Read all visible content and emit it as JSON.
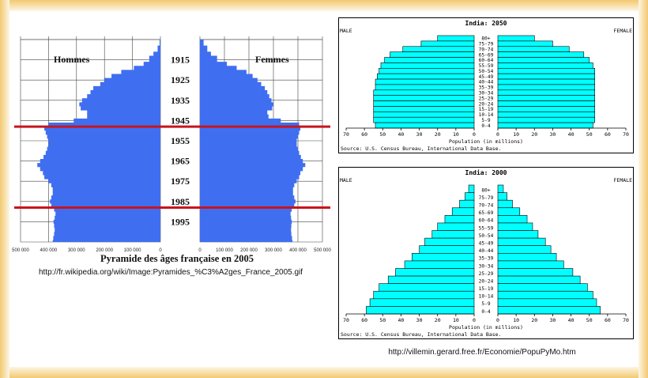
{
  "theme": {
    "bar_blue": "#3f6ff0",
    "bar_cyan": "#00ffff",
    "red_line": "#c8141e",
    "frame": "#f6d690"
  },
  "france": {
    "left_label": "Hommes",
    "right_label": "Femmes",
    "year_labels": [
      "1915",
      "1925",
      "1935",
      "1945",
      "1955",
      "1965",
      "1975",
      "1985",
      "1995"
    ],
    "x_tick_labels_left": [
      "500 000",
      "400 000",
      "300 000",
      "200 000",
      "100 000",
      "0"
    ],
    "x_tick_labels_right": [
      "0",
      "100 000",
      "200 000",
      "300 000",
      "400 000",
      "500 000"
    ],
    "caption": "Pyramide des âges française en 2005",
    "source_url": "http://fr.wikipedia.org/wiki/Image:Pyramides_%C3%A2ges_France_2005.gif"
  },
  "india_right_url": "http://villemin.gerard.free.fr/Economie/PopuPyMo.htm",
  "chart_data": [
    {
      "type": "bar",
      "orientation": "horizontal-pyramid",
      "series": [
        {
          "name": "Hommes"
        },
        {
          "name": "Femmes"
        }
      ],
      "unit": "persons",
      "x_range": [
        0,
        500000
      ],
      "y_label_years": [
        "1915",
        "1925",
        "1935",
        "1945",
        "1955",
        "1965",
        "1975",
        "1985",
        "1995"
      ],
      "year_range": [
        1905,
        2005
      ],
      "hommes": [
        [
          1905,
          3000
        ],
        [
          1908,
          10000
        ],
        [
          1911,
          25000
        ],
        [
          1913,
          40000
        ],
        [
          1916,
          60000
        ],
        [
          1918,
          95000
        ],
        [
          1920,
          140000
        ],
        [
          1922,
          175000
        ],
        [
          1924,
          200000
        ],
        [
          1926,
          215000
        ],
        [
          1928,
          240000
        ],
        [
          1930,
          250000
        ],
        [
          1932,
          262000
        ],
        [
          1934,
          280000
        ],
        [
          1936,
          290000
        ],
        [
          1938,
          285000
        ],
        [
          1940,
          262000
        ],
        [
          1942,
          262000
        ],
        [
          1944,
          310000
        ],
        [
          1946,
          400000
        ],
        [
          1948,
          415000
        ],
        [
          1950,
          410000
        ],
        [
          1952,
          405000
        ],
        [
          1954,
          400000
        ],
        [
          1956,
          400000
        ],
        [
          1958,
          405000
        ],
        [
          1960,
          410000
        ],
        [
          1962,
          418000
        ],
        [
          1964,
          430000
        ],
        [
          1966,
          440000
        ],
        [
          1968,
          430000
        ],
        [
          1970,
          420000
        ],
        [
          1972,
          415000
        ],
        [
          1974,
          400000
        ],
        [
          1976,
          390000
        ],
        [
          1978,
          385000
        ],
        [
          1980,
          385000
        ],
        [
          1982,
          390000
        ],
        [
          1984,
          395000
        ],
        [
          1986,
          390000
        ],
        [
          1988,
          380000
        ],
        [
          1990,
          375000
        ],
        [
          1992,
          378000
        ],
        [
          1994,
          382000
        ],
        [
          1996,
          380000
        ],
        [
          1998,
          378000
        ],
        [
          2000,
          380000
        ],
        [
          2002,
          383000
        ],
        [
          2004,
          385000
        ]
      ],
      "femmes": [
        [
          1905,
          15000
        ],
        [
          1908,
          30000
        ],
        [
          1911,
          45000
        ],
        [
          1913,
          70000
        ],
        [
          1916,
          110000
        ],
        [
          1918,
          150000
        ],
        [
          1920,
          190000
        ],
        [
          1922,
          215000
        ],
        [
          1924,
          235000
        ],
        [
          1926,
          250000
        ],
        [
          1928,
          265000
        ],
        [
          1930,
          275000
        ],
        [
          1932,
          283000
        ],
        [
          1934,
          292000
        ],
        [
          1936,
          300000
        ],
        [
          1938,
          295000
        ],
        [
          1940,
          275000
        ],
        [
          1942,
          280000
        ],
        [
          1944,
          330000
        ],
        [
          1946,
          405000
        ],
        [
          1948,
          410000
        ],
        [
          1950,
          405000
        ],
        [
          1952,
          400000
        ],
        [
          1954,
          395000
        ],
        [
          1956,
          395000
        ],
        [
          1958,
          400000
        ],
        [
          1960,
          405000
        ],
        [
          1962,
          412000
        ],
        [
          1964,
          420000
        ],
        [
          1966,
          430000
        ],
        [
          1968,
          420000
        ],
        [
          1970,
          410000
        ],
        [
          1972,
          405000
        ],
        [
          1974,
          395000
        ],
        [
          1976,
          385000
        ],
        [
          1978,
          380000
        ],
        [
          1980,
          380000
        ],
        [
          1982,
          385000
        ],
        [
          1984,
          390000
        ],
        [
          1986,
          385000
        ],
        [
          1988,
          375000
        ],
        [
          1990,
          370000
        ],
        [
          1992,
          372000
        ],
        [
          1994,
          375000
        ],
        [
          1996,
          373000
        ],
        [
          1998,
          372000
        ],
        [
          2000,
          373000
        ],
        [
          2002,
          376000
        ],
        [
          2004,
          378000
        ]
      ],
      "highlight_years": [
        1948,
        1988
      ],
      "title": "Pyramide des âges française en 2005"
    },
    {
      "type": "bar",
      "orientation": "horizontal-pyramid",
      "title": "India: 2050",
      "left_label": "MALE",
      "right_label": "FEMALE",
      "categories": [
        "80+",
        "75-79",
        "70-74",
        "65-69",
        "60-64",
        "55-59",
        "50-54",
        "45-49",
        "40-44",
        "35-39",
        "30-34",
        "25-29",
        "20-24",
        "15-19",
        "10-14",
        "5-9",
        "0-4"
      ],
      "series": [
        {
          "name": "MALE",
          "values": [
            20,
            29,
            39,
            46,
            49,
            51,
            52,
            53,
            54,
            54,
            55,
            55,
            55,
            55,
            55,
            55,
            54
          ]
        },
        {
          "name": "FEMALE",
          "values": [
            20,
            30,
            39,
            47,
            50,
            52,
            53,
            53,
            53,
            53,
            53,
            53,
            53,
            53,
            53,
            53,
            52
          ]
        }
      ],
      "xlim": [
        0,
        70
      ],
      "x_ticks": [
        "70",
        "60",
        "50",
        "40",
        "30",
        "20",
        "10",
        "0",
        "0",
        "10",
        "20",
        "30",
        "40",
        "50",
        "60",
        "70"
      ],
      "xlabel": "Population (in millions)",
      "source": "Source: U.S. Census Bureau, International Data Base."
    },
    {
      "type": "bar",
      "orientation": "horizontal-pyramid",
      "title": "India: 2000",
      "left_label": "MALE",
      "right_label": "FEMALE",
      "categories": [
        "80+",
        "75-79",
        "70-74",
        "65-69",
        "60-64",
        "55-59",
        "50-54",
        "45-49",
        "40-44",
        "35-39",
        "30-34",
        "25-29",
        "20-24",
        "15-19",
        "10-14",
        "5-9",
        "0-4"
      ],
      "series": [
        {
          "name": "MALE",
          "values": [
            3,
            5,
            8,
            12,
            16,
            20,
            23,
            27,
            30,
            34,
            38,
            43,
            47,
            52,
            55,
            57,
            59
          ]
        },
        {
          "name": "FEMALE",
          "values": [
            3,
            5,
            8,
            12,
            16,
            19,
            22,
            26,
            29,
            32,
            36,
            41,
            45,
            49,
            52,
            54,
            56
          ]
        }
      ],
      "xlim": [
        0,
        70
      ],
      "x_ticks": [
        "70",
        "60",
        "50",
        "40",
        "30",
        "20",
        "10",
        "0",
        "0",
        "10",
        "20",
        "30",
        "40",
        "50",
        "60",
        "70"
      ],
      "xlabel": "Population (in millions)",
      "source": "Source: U.S. Census Bureau, International Data Base."
    }
  ]
}
